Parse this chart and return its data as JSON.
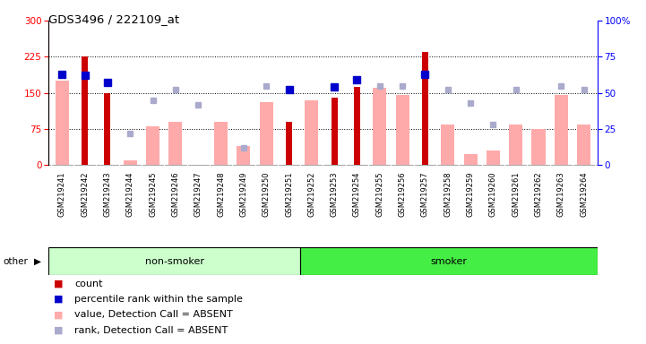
{
  "title": "GDS3496 / 222109_at",
  "samples": [
    "GSM219241",
    "GSM219242",
    "GSM219243",
    "GSM219244",
    "GSM219245",
    "GSM219246",
    "GSM219247",
    "GSM219248",
    "GSM219249",
    "GSM219250",
    "GSM219251",
    "GSM219252",
    "GSM219253",
    "GSM219254",
    "GSM219255",
    "GSM219256",
    "GSM219257",
    "GSM219258",
    "GSM219259",
    "GSM219260",
    "GSM219261",
    "GSM219262",
    "GSM219263",
    "GSM219264"
  ],
  "count_values": [
    null,
    225,
    150,
    null,
    null,
    null,
    null,
    null,
    null,
    null,
    90,
    null,
    140,
    163,
    null,
    null,
    235,
    null,
    null,
    null,
    null,
    null,
    null,
    null
  ],
  "percentile_rank": [
    63,
    62,
    57,
    null,
    null,
    null,
    null,
    null,
    null,
    null,
    52,
    null,
    54,
    59,
    null,
    null,
    63,
    null,
    null,
    null,
    null,
    null,
    null,
    null
  ],
  "value_absent": [
    175,
    null,
    null,
    10,
    80,
    90,
    null,
    90,
    40,
    130,
    null,
    135,
    null,
    null,
    160,
    145,
    null,
    85,
    22,
    30,
    85,
    75,
    145,
    85
  ],
  "rank_absent": [
    null,
    null,
    null,
    22,
    45,
    52,
    42,
    null,
    12,
    55,
    null,
    null,
    null,
    null,
    55,
    55,
    null,
    52,
    43,
    28,
    52,
    null,
    55,
    52
  ],
  "non_smoker_count": 11,
  "smoker_count": 13,
  "ylim_left": [
    0,
    300
  ],
  "ylim_right": [
    0,
    100
  ],
  "yticks_left": [
    0,
    75,
    150,
    225,
    300
  ],
  "yticks_right": [
    0,
    25,
    50,
    75,
    100
  ],
  "color_count": "#cc0000",
  "color_rank": "#0000cc",
  "color_value_absent": "#ffaaaa",
  "color_rank_absent": "#aaaacc",
  "color_nonsmoker": "#ccffcc",
  "color_smoker": "#44ee44",
  "bg_xticklabel": "#cccccc",
  "legend_items": [
    "count",
    "percentile rank within the sample",
    "value, Detection Call = ABSENT",
    "rank, Detection Call = ABSENT"
  ]
}
